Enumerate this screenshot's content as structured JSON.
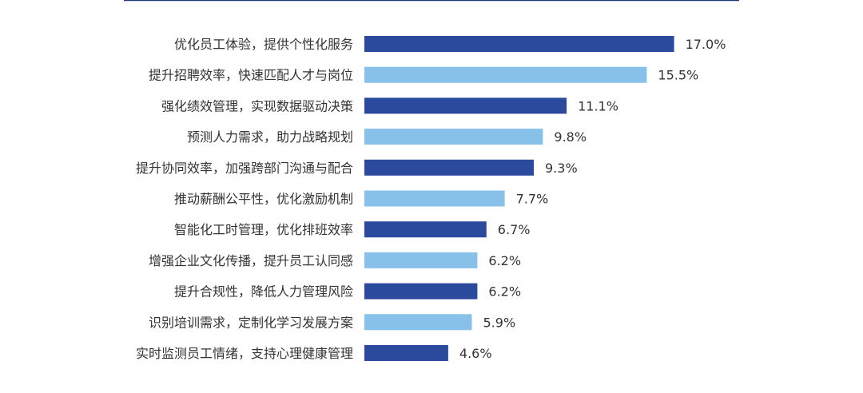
{
  "chart_data": {
    "type": "bar",
    "orientation": "horizontal",
    "categories": [
      "优化员工体验，提供个性化服务",
      "提升招聘效率，快速匹配人才与岗位",
      "强化绩效管理，实现数据驱动决策",
      "预测人力需求，助力战略规划",
      "提升协同效率，加强跨部门沟通与配合",
      "推动薪酬公平性，优化激励机制",
      "智能化工时管理，优化排班效率",
      "增强企业文化传播，提升员工认同感",
      "提升合规性，降低人力管理风险",
      "识别培训需求，定制化学习发展方案",
      "实时监测员工情绪，支持心理健康管理"
    ],
    "values": [
      17.0,
      15.5,
      11.1,
      9.8,
      9.3,
      7.7,
      6.7,
      6.2,
      6.2,
      5.9,
      4.6
    ],
    "value_labels": [
      "17.0%",
      "15.5%",
      "11.1%",
      "9.8%",
      "9.3%",
      "7.7%",
      "6.7%",
      "6.2%",
      "6.2%",
      "5.9%",
      "4.6%"
    ],
    "unit": "%",
    "xlim": [
      0,
      17.0
    ],
    "grid": false,
    "colors": {
      "dark": "#2B4A9E",
      "light": "#87C0E8",
      "top_rule": "#1F3A7A"
    },
    "bar_color_pattern": [
      "dark",
      "light"
    ]
  }
}
